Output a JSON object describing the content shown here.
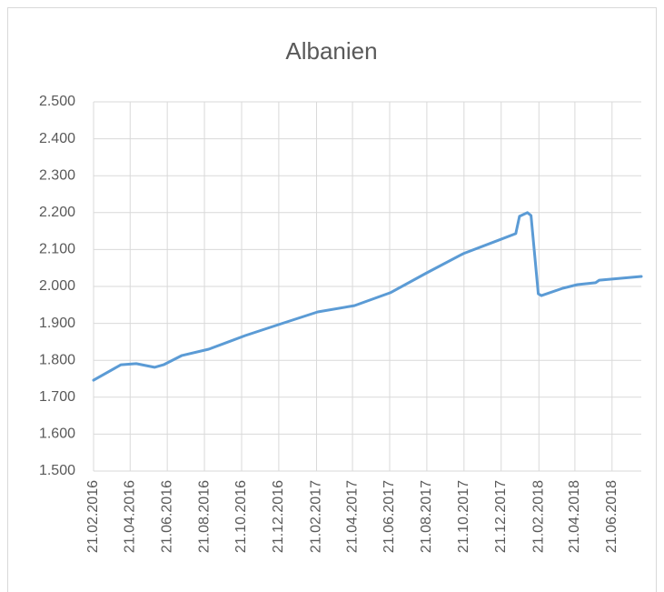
{
  "chart_data": {
    "type": "line",
    "title": "Albanien",
    "x": [
      "21.02.2016",
      "06.04.2016",
      "01.05.2016",
      "31.05.2016",
      "15.06.2016",
      "15.07.2016",
      "28.08.2016",
      "27.10.2016",
      "25.12.2016",
      "23.02.2017",
      "24.04.2017",
      "22.06.2017",
      "21.08.2017",
      "20.10.2017",
      "18.12.2017",
      "14.01.2018",
      "20.01.2018",
      "02.02.2018",
      "08.02.2018",
      "20.02.2018",
      "25.02.2018",
      "01.04.2018",
      "25.04.2018",
      "25.05.2018",
      "31.05.2018",
      "08.08.2018"
    ],
    "values": [
      1746,
      1788,
      1791,
      1781,
      1788,
      1813,
      1830,
      1867,
      1899,
      1931,
      1948,
      1983,
      2037,
      2089,
      2126,
      2143,
      2190,
      2200,
      2192,
      1980,
      1975,
      1995,
      2005,
      2010,
      2017,
      2027
    ],
    "color": "#5b9bd5",
    "xlim": [
      "21.02.2016",
      "08.08.2018"
    ],
    "xticks": [
      "21.02.2016",
      "21.04.2016",
      "21.06.2016",
      "21.08.2016",
      "21.10.2016",
      "21.12.2016",
      "21.02.2017",
      "21.04.2017",
      "21.06.2017",
      "21.08.2017",
      "21.10.2017",
      "21.12.2017",
      "21.02.2018",
      "21.04.2018",
      "21.06.2018"
    ],
    "ylim": [
      1500,
      2500
    ],
    "yticks": [
      {
        "value": 1500,
        "label": "1.500"
      },
      {
        "value": 1600,
        "label": "1.600"
      },
      {
        "value": 1700,
        "label": "1.700"
      },
      {
        "value": 1800,
        "label": "1.800"
      },
      {
        "value": 1900,
        "label": "1.900"
      },
      {
        "value": 2000,
        "label": "2.000"
      },
      {
        "value": 2100,
        "label": "2.100"
      },
      {
        "value": 2200,
        "label": "2.200"
      },
      {
        "value": 2300,
        "label": "2.300"
      },
      {
        "value": 2400,
        "label": "2.400"
      },
      {
        "value": 2500,
        "label": "2.500"
      }
    ],
    "grid": true
  }
}
